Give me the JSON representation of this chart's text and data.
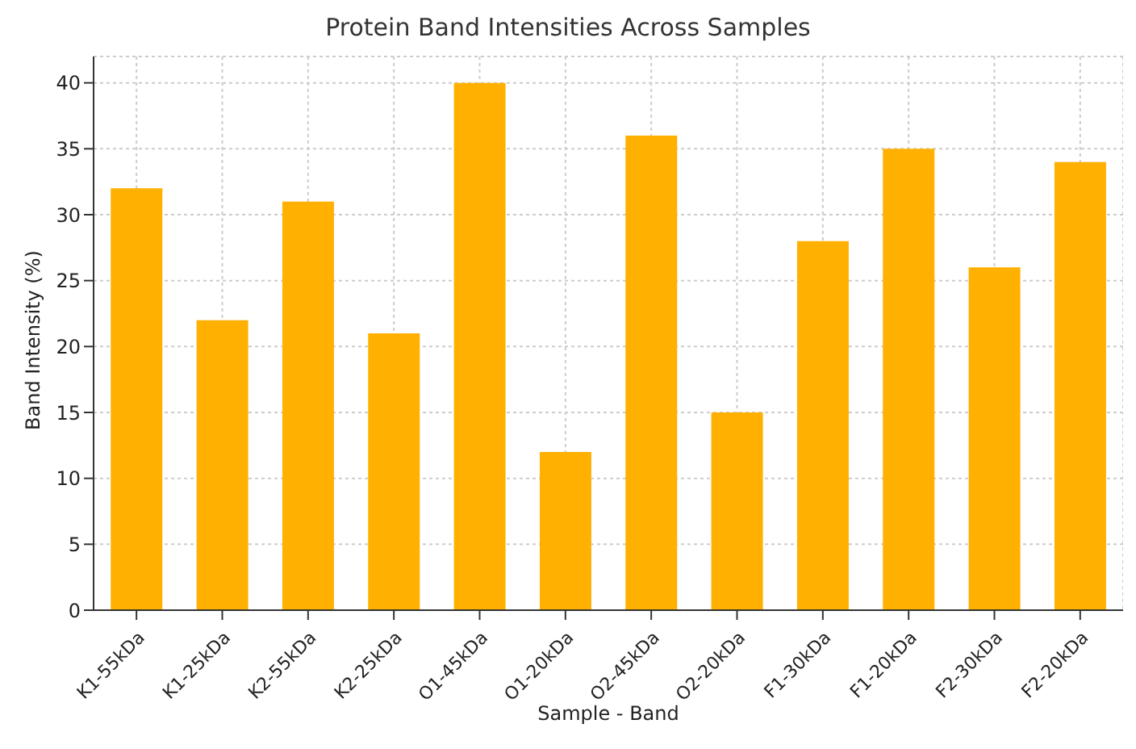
{
  "chart_data": {
    "type": "bar",
    "title": "Protein Band Intensities Across Samples",
    "xlabel": "Sample - Band",
    "ylabel": "Band Intensity (%)",
    "categories": [
      "K1-55kDa",
      "K1-25kDa",
      "K2-55kDa",
      "K2-25kDa",
      "O1-45kDa",
      "O1-20kDa",
      "O2-45kDa",
      "O2-20kDa",
      "F1-30kDa",
      "F1-20kDa",
      "F2-30kDa",
      "F2-20kDa"
    ],
    "values": [
      32,
      22,
      31,
      21,
      40,
      12,
      36,
      15,
      28,
      35,
      26,
      34
    ],
    "color": "#ffb000",
    "ylim": [
      0,
      42
    ],
    "yticks": [
      0,
      5,
      10,
      15,
      20,
      25,
      30,
      35,
      40
    ],
    "grid": true
  }
}
